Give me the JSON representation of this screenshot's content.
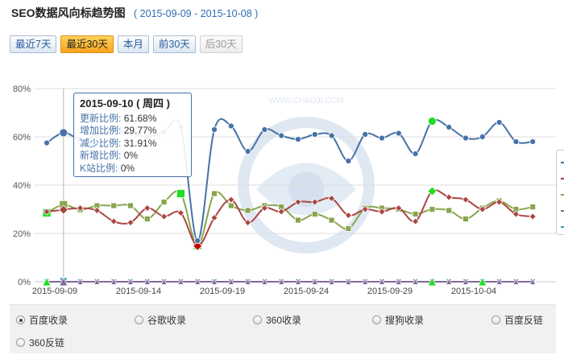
{
  "header": {
    "title": "SEO数据风向标趋势图",
    "date_range": "( 2015-09-09 - 2015-10-08 )"
  },
  "range_buttons": [
    {
      "label": "最近7天",
      "state": "normal"
    },
    {
      "label": "最近30天",
      "state": "active"
    },
    {
      "label": "本月",
      "state": "normal"
    },
    {
      "label": "前30天",
      "state": "normal"
    },
    {
      "label": "后30天",
      "state": "disabled"
    }
  ],
  "tooltip": {
    "date": "2015-09-10 ( 周四 )",
    "rows": [
      {
        "label": "更新比例:",
        "value": "61.68%"
      },
      {
        "label": "增加比例:",
        "value": "29.77%"
      },
      {
        "label": "减少比例:",
        "value": "31.91%"
      },
      {
        "label": "新增比例:",
        "value": "0%"
      },
      {
        "label": "K站比例:",
        "value": "0%"
      }
    ]
  },
  "radio_options": [
    {
      "label": "百度收录",
      "checked": true
    },
    {
      "label": "谷歌收录",
      "checked": false
    },
    {
      "label": "360收录",
      "checked": false
    },
    {
      "label": "搜狗收录",
      "checked": false
    },
    {
      "label": "百度反链",
      "checked": false
    },
    {
      "label": "360反链",
      "checked": false
    }
  ],
  "watermark": "WWW.CHAOJI.COM",
  "chart_data": {
    "type": "line",
    "ylim": [
      0,
      80
    ],
    "y_ticks": [
      "0%",
      "20%",
      "40%",
      "60%",
      "80%"
    ],
    "x_tick_labels": [
      "2015-09-09",
      "2015-09-14",
      "2015-09-19",
      "2015-09-24",
      "2015-09-29",
      "2015-10-04"
    ],
    "x_dates": [
      "2015-09-09",
      "2015-09-10",
      "2015-09-11",
      "2015-09-12",
      "2015-09-13",
      "2015-09-14",
      "2015-09-15",
      "2015-09-16",
      "2015-09-17",
      "2015-09-18",
      "2015-09-19",
      "2015-09-20",
      "2015-09-21",
      "2015-09-22",
      "2015-09-23",
      "2015-09-24",
      "2015-09-25",
      "2015-09-26",
      "2015-09-27",
      "2015-09-28",
      "2015-09-29",
      "2015-09-30",
      "2015-10-01",
      "2015-10-02",
      "2015-10-03",
      "2015-10-04",
      "2015-10-05",
      "2015-10-06",
      "2015-10-07",
      "2015-10-08"
    ],
    "grid": true,
    "crosshair_date": "2015-09-10",
    "series": [
      {
        "color": "#4572a7",
        "marker": "circle",
        "values": [
          57.5,
          61.7,
          59,
          60.5,
          63,
          61.5,
          60,
          62,
          64,
          17,
          63,
          64.5,
          54,
          63,
          60.5,
          59,
          61,
          60.5,
          50,
          61,
          59.5,
          61.5,
          53,
          66.5,
          64,
          59.5,
          60,
          66,
          58,
          58
        ],
        "highlight": [
          {
            "index": 23,
            "color": "#22dd22"
          }
        ]
      },
      {
        "color": "#aa4643",
        "marker": "diamond",
        "values": [
          29,
          29.8,
          30.5,
          29.5,
          25,
          24.5,
          30.5,
          27,
          28.5,
          14.8,
          26.5,
          34,
          24.5,
          30.5,
          29,
          33,
          33,
          34.5,
          27.5,
          30,
          29,
          30.5,
          25,
          37.5,
          35,
          34,
          30,
          33,
          28,
          27
        ],
        "highlight": [
          {
            "index": 9,
            "color": "#cc0000"
          },
          {
            "index": 23,
            "color": "#22dd22"
          }
        ]
      },
      {
        "color": "#89a54e",
        "marker": "square",
        "values": [
          28.5,
          31.9,
          29.8,
          31.5,
          31.5,
          31.5,
          26,
          33,
          36.5,
          15,
          36.5,
          31.5,
          29.5,
          31.5,
          31,
          25.5,
          28,
          25.5,
          22,
          30.5,
          30.5,
          30,
          28,
          30,
          29.5,
          26,
          30.5,
          33.5,
          30,
          31
        ],
        "highlight": [
          {
            "index": 0,
            "color": "#22dd22"
          },
          {
            "index": 8,
            "color": "#22dd22"
          },
          {
            "index": 9,
            "color": "#22dd22"
          }
        ]
      },
      {
        "color": "#80699b",
        "marker": "triangle",
        "values": [
          0,
          0,
          0,
          0,
          0,
          0,
          0,
          0,
          0,
          0,
          0,
          0,
          0,
          0,
          0,
          0,
          0,
          0,
          0,
          0,
          0,
          0,
          0,
          0,
          0,
          0,
          0,
          0,
          0,
          0
        ],
        "highlight": [
          {
            "index": 0,
            "color": "#22dd22"
          },
          {
            "index": 23,
            "color": "#22dd22"
          },
          {
            "index": 26,
            "color": "#22dd22"
          }
        ]
      },
      {
        "color": "#3d96ae",
        "marker": "triangle-down",
        "values": [
          0,
          0,
          0,
          0,
          0,
          0,
          0,
          0,
          0,
          0,
          0,
          0,
          0,
          0,
          0,
          0,
          0,
          0,
          0,
          0,
          0,
          0,
          0,
          0,
          0,
          0,
          0,
          0,
          0,
          0
        ],
        "highlight": []
      }
    ]
  }
}
